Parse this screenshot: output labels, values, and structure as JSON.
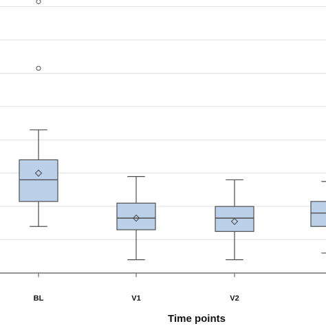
{
  "chart_data": {
    "type": "box",
    "xlabel": "Time points",
    "ylabel": "",
    "title": "",
    "ylim": [
      0,
      16.4
    ],
    "grid": true,
    "box_fill": "#bcd0ea",
    "box_stroke": "#4d4d4d",
    "grid_color": "#e1e1e1",
    "categories": [
      "BL",
      "V1",
      "V2",
      ""
    ],
    "boxes": [
      {
        "category": "BL",
        "whisker_low": 2.8,
        "q1": 4.3,
        "median": 5.6,
        "q3": 6.8,
        "whisker_high": 8.6,
        "mean": 6.0,
        "outliers": [
          16.3,
          12.3
        ]
      },
      {
        "category": "V1",
        "whisker_low": 0.8,
        "q1": 2.6,
        "median": 3.3,
        "q3": 4.2,
        "whisker_high": 5.8,
        "mean": 3.3,
        "outliers": []
      },
      {
        "category": "V2",
        "whisker_low": 0.8,
        "q1": 2.5,
        "median": 3.3,
        "q3": 4.0,
        "whisker_high": 5.6,
        "mean": 3.1,
        "outliers": []
      },
      {
        "category": "",
        "whisker_low": 1.2,
        "q1": 2.8,
        "median": 3.6,
        "q3": 4.3,
        "whisker_high": 5.5,
        "mean": null,
        "outliers": []
      }
    ]
  }
}
